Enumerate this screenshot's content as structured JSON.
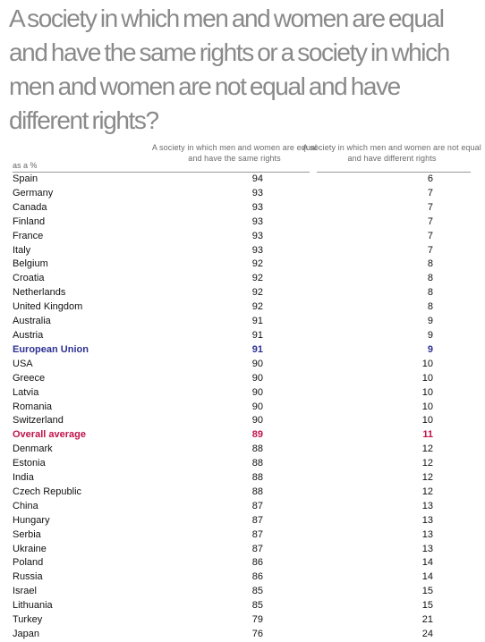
{
  "title": "A society in which men and women are equal and have the same rights or a society in which men and women are not equal and have different rights?",
  "unit_label": "as a %",
  "colors": {
    "title": "#8a8a8a",
    "european_union": "#2e3192",
    "overall_average": "#c0134a",
    "text": "#111111"
  },
  "chart_data": {
    "type": "table",
    "columns": [
      "A society in which men and women are equal and have the same rights",
      "A society in which men and women are not equal and have different rights"
    ],
    "rows": [
      {
        "label": "Spain",
        "values": [
          94,
          6
        ]
      },
      {
        "label": "Germany",
        "values": [
          93,
          7
        ]
      },
      {
        "label": "Canada",
        "values": [
          93,
          7
        ]
      },
      {
        "label": "Finland",
        "values": [
          93,
          7
        ]
      },
      {
        "label": "France",
        "values": [
          93,
          7
        ]
      },
      {
        "label": "Italy",
        "values": [
          93,
          7
        ]
      },
      {
        "label": "Belgium",
        "values": [
          92,
          8
        ]
      },
      {
        "label": "Croatia",
        "values": [
          92,
          8
        ]
      },
      {
        "label": "Netherlands",
        "values": [
          92,
          8
        ]
      },
      {
        "label": "United Kingdom",
        "values": [
          92,
          8
        ]
      },
      {
        "label": "Australia",
        "values": [
          91,
          9
        ]
      },
      {
        "label": "Austria",
        "values": [
          91,
          9
        ]
      },
      {
        "label": "European Union",
        "values": [
          91,
          9
        ],
        "highlight": "eu"
      },
      {
        "label": "USA",
        "values": [
          90,
          10
        ]
      },
      {
        "label": "Greece",
        "values": [
          90,
          10
        ]
      },
      {
        "label": "Latvia",
        "values": [
          90,
          10
        ]
      },
      {
        "label": "Romania",
        "values": [
          90,
          10
        ]
      },
      {
        "label": "Switzerland",
        "values": [
          90,
          10
        ]
      },
      {
        "label": "Overall average",
        "values": [
          89,
          11
        ],
        "highlight": "avg"
      },
      {
        "label": "Denmark",
        "values": [
          88,
          12
        ]
      },
      {
        "label": "Estonia",
        "values": [
          88,
          12
        ]
      },
      {
        "label": "India",
        "values": [
          88,
          12
        ]
      },
      {
        "label": "Czech Republic",
        "values": [
          88,
          12
        ]
      },
      {
        "label": "China",
        "values": [
          87,
          13
        ]
      },
      {
        "label": "Hungary",
        "values": [
          87,
          13
        ]
      },
      {
        "label": "Serbia",
        "values": [
          87,
          13
        ]
      },
      {
        "label": "Ukraine",
        "values": [
          87,
          13
        ]
      },
      {
        "label": "Poland",
        "values": [
          86,
          14
        ]
      },
      {
        "label": "Russia",
        "values": [
          86,
          14
        ]
      },
      {
        "label": "Israel",
        "values": [
          85,
          15
        ]
      },
      {
        "label": "Lithuania",
        "values": [
          85,
          15
        ]
      },
      {
        "label": "Turkey",
        "values": [
          79,
          21
        ]
      },
      {
        "label": "Japan",
        "values": [
          76,
          24
        ]
      }
    ]
  }
}
